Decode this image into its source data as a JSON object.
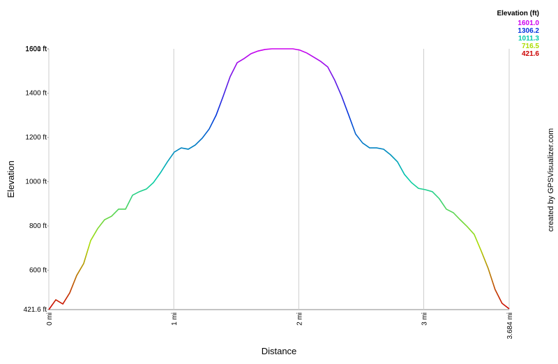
{
  "chart_data": {
    "type": "line",
    "y_label": "Elevation",
    "x_label": "Distance",
    "credit": "created by GPSVisualizer.com",
    "legend": {
      "title": "Elevation (ft)",
      "entries": [
        {
          "value": 1601,
          "label": "1601.0",
          "color": "#cc00ee"
        },
        {
          "value": 1306.2,
          "label": "1306.2",
          "color": "#0033dd"
        },
        {
          "value": 1011.3,
          "label": "1011.3",
          "color": "#00ccaa"
        },
        {
          "value": 716.5,
          "label": "716.5",
          "color": "#aadd00"
        },
        {
          "value": 421.6,
          "label": "421.6",
          "color": "#cc0000"
        }
      ]
    },
    "xlim": [
      0,
      3.684
    ],
    "ylim": [
      421.6,
      1601
    ],
    "xticks": [
      {
        "value": 0,
        "label": "0 mi"
      },
      {
        "value": 1,
        "label": "1 mi"
      },
      {
        "value": 2,
        "label": "2 mi"
      },
      {
        "value": 3,
        "label": "3 mi"
      },
      {
        "value": 3.684,
        "label": "3.684 mi"
      }
    ],
    "yticks": [
      {
        "value": 421.6,
        "label": "421.6 ft"
      },
      {
        "value": 600,
        "label": "600 ft"
      },
      {
        "value": 800,
        "label": "800 ft"
      },
      {
        "value": 1000,
        "label": "1000 ft"
      },
      {
        "value": 1200,
        "label": "1200 ft"
      },
      {
        "value": 1400,
        "label": "1400 ft"
      },
      {
        "value": 1600,
        "label": "1600 ft"
      },
      {
        "value": 1601,
        "label": "1601 ft"
      }
    ],
    "x": [
      0,
      0.056,
      0.112,
      0.167,
      0.223,
      0.279,
      0.335,
      0.391,
      0.446,
      0.502,
      0.558,
      0.614,
      0.67,
      0.725,
      0.781,
      0.837,
      0.893,
      0.949,
      1.004,
      1.06,
      1.116,
      1.172,
      1.228,
      1.283,
      1.339,
      1.395,
      1.451,
      1.507,
      1.563,
      1.618,
      1.674,
      1.73,
      1.786,
      1.842,
      1.897,
      1.953,
      2.009,
      2.065,
      2.121,
      2.176,
      2.232,
      2.288,
      2.344,
      2.4,
      2.455,
      2.511,
      2.567,
      2.623,
      2.679,
      2.734,
      2.79,
      2.846,
      2.902,
      2.958,
      3.013,
      3.069,
      3.125,
      3.181,
      3.237,
      3.292,
      3.348,
      3.404,
      3.46,
      3.516,
      3.571,
      3.627,
      3.684
    ],
    "values": [
      421.6,
      466,
      447,
      497,
      576,
      630,
      734,
      788,
      828,
      844,
      876,
      876,
      939,
      955,
      967,
      996,
      1040,
      1090,
      1134,
      1153,
      1147,
      1166,
      1197,
      1238,
      1301,
      1386,
      1475,
      1538,
      1557,
      1579,
      1591,
      1598,
      1601,
      1601,
      1601,
      1601,
      1595,
      1582,
      1563,
      1544,
      1519,
      1459,
      1386,
      1301,
      1216,
      1175,
      1153,
      1153,
      1147,
      1122,
      1090,
      1033,
      996,
      970,
      964,
      955,
      923,
      876,
      860,
      828,
      797,
      762,
      687,
      608,
      513,
      450,
      425
    ]
  }
}
